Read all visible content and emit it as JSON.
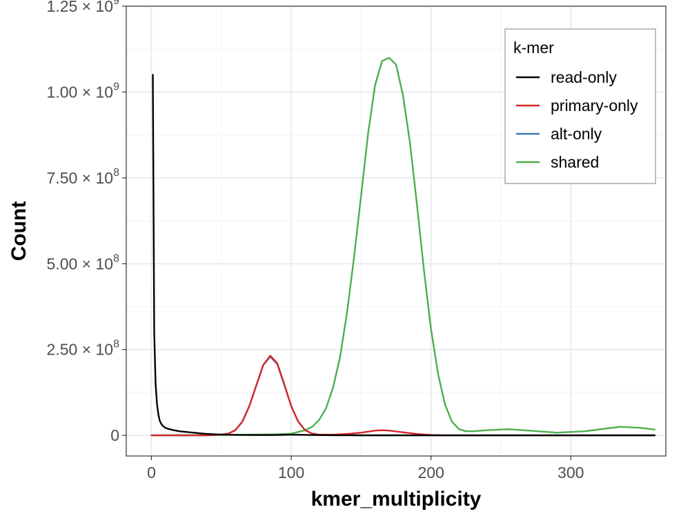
{
  "chart_data": {
    "type": "line",
    "xlabel": "kmer_multiplicity",
    "ylabel": "Count",
    "xlim": [
      -18,
      368
    ],
    "ylim": [
      -60000000,
      1250000000
    ],
    "x_ticks": [
      0,
      100,
      200,
      300
    ],
    "x_tick_labels": [
      "0",
      "100",
      "200",
      "300"
    ],
    "y_ticks": [
      0,
      250000000,
      500000000,
      750000000,
      1000000000,
      1250000000
    ],
    "y_tick_labels": [
      {
        "mantissa": "0",
        "exponent": ""
      },
      {
        "mantissa": "2.50 × 10",
        "exponent": "8"
      },
      {
        "mantissa": "5.00 × 10",
        "exponent": "8"
      },
      {
        "mantissa": "7.50 × 10",
        "exponent": "8"
      },
      {
        "mantissa": "1.00 × 10",
        "exponent": "9"
      },
      {
        "mantissa": "1.25 × 10",
        "exponent": "9"
      }
    ],
    "grid": true,
    "legend": {
      "title": "k-mer",
      "position": "top-right"
    },
    "series": [
      {
        "name": "read-only",
        "color": "#000000",
        "x": [
          1,
          2,
          3,
          4,
          5,
          6,
          7,
          8,
          10,
          12,
          15,
          20,
          25,
          30,
          35,
          40,
          45,
          50,
          60,
          70,
          80,
          90,
          100,
          110,
          120,
          130,
          150,
          200,
          250,
          300,
          360
        ],
        "y": [
          1050000000,
          300000000,
          150000000,
          90000000,
          60000000,
          42000000,
          34000000,
          28000000,
          22000000,
          19000000,
          16000000,
          12000000,
          10000000,
          8000000,
          6000000,
          4000000,
          3000000,
          2500000,
          1500000,
          1000000,
          800000,
          1000000,
          2000000,
          1500000,
          800000,
          400000,
          200000,
          100000,
          0,
          0,
          0
        ]
      },
      {
        "name": "primary-only",
        "color": "#d62728",
        "x": [
          0,
          40,
          50,
          55,
          60,
          65,
          70,
          75,
          80,
          85,
          90,
          95,
          100,
          105,
          110,
          115,
          120,
          130,
          140,
          150,
          160,
          165,
          170,
          180,
          190,
          200,
          210,
          250,
          300,
          360
        ],
        "y": [
          0,
          0,
          2000000,
          5000000,
          15000000,
          40000000,
          85000000,
          145000000,
          205000000,
          232000000,
          210000000,
          150000000,
          85000000,
          40000000,
          15000000,
          5000000,
          2000000,
          2000000,
          4000000,
          8000000,
          14000000,
          15000000,
          14000000,
          9000000,
          4000000,
          1000000,
          0,
          0,
          0,
          0
        ]
      },
      {
        "name": "alt-only",
        "color": "#3a7ab5",
        "x": [
          0,
          40,
          50,
          55,
          60,
          65,
          70,
          75,
          80,
          85,
          90,
          95,
          100,
          105,
          110,
          115,
          120,
          150,
          200,
          250,
          300,
          360
        ],
        "y": [
          0,
          0,
          2000000,
          5000000,
          15000000,
          40000000,
          85000000,
          145000000,
          205000000,
          229000000,
          208000000,
          148000000,
          85000000,
          40000000,
          15000000,
          5000000,
          1000000,
          0,
          0,
          0,
          0,
          0
        ]
      },
      {
        "name": "shared",
        "color": "#4cae4c",
        "x": [
          0,
          50,
          90,
          100,
          110,
          115,
          120,
          125,
          130,
          135,
          140,
          145,
          150,
          155,
          160,
          165,
          170,
          175,
          180,
          185,
          190,
          195,
          200,
          205,
          210,
          215,
          220,
          225,
          230,
          240,
          255,
          270,
          290,
          310,
          335,
          350,
          360
        ],
        "y": [
          0,
          1000000,
          3000000,
          5000000,
          15000000,
          25000000,
          45000000,
          80000000,
          140000000,
          230000000,
          360000000,
          520000000,
          700000000,
          880000000,
          1020000000,
          1090000000,
          1100000000,
          1080000000,
          990000000,
          850000000,
          670000000,
          480000000,
          310000000,
          180000000,
          90000000,
          40000000,
          18000000,
          12000000,
          12000000,
          15000000,
          18000000,
          14000000,
          8000000,
          12000000,
          25000000,
          22000000,
          17000000
        ]
      }
    ]
  }
}
